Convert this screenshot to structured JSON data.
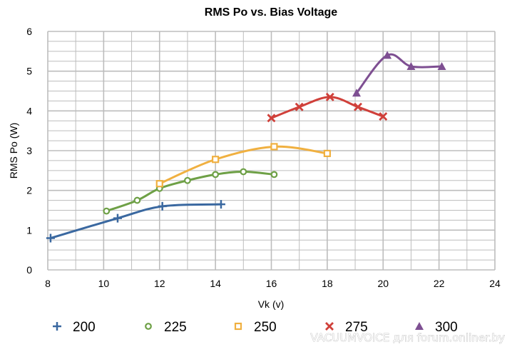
{
  "chart_data": {
    "type": "scatter",
    "title": "RMS Po vs. Bias Voltage",
    "xlabel": "Vk (v)",
    "ylabel": "RMS Po (W)",
    "xlim": [
      8,
      24
    ],
    "ylim": [
      0,
      6
    ],
    "xticks": [
      "8",
      "10",
      "12",
      "14",
      "16",
      "18",
      "20",
      "22",
      "24"
    ],
    "yticks": [
      "0",
      "1",
      "2",
      "3",
      "4",
      "5",
      "6"
    ],
    "grid": true,
    "legend_position": "bottom",
    "series": [
      {
        "name": "200",
        "color": "#3a68a0",
        "marker": "plus",
        "x": [
          8.1,
          10.5,
          12.1,
          14.2
        ],
        "y": [
          0.8,
          1.3,
          1.6,
          1.65
        ]
      },
      {
        "name": "225",
        "color": "#6ea046",
        "marker": "circle",
        "x": [
          10.1,
          11.2,
          12.0,
          13.0,
          14.0,
          15.0,
          16.1
        ],
        "y": [
          1.48,
          1.75,
          2.05,
          2.25,
          2.4,
          2.47,
          2.4
        ]
      },
      {
        "name": "250",
        "color": "#f0b040",
        "marker": "square",
        "x": [
          12.0,
          14.0,
          16.1,
          18.0
        ],
        "y": [
          2.17,
          2.78,
          3.1,
          2.93
        ]
      },
      {
        "name": "275",
        "color": "#d0403a",
        "marker": "x",
        "x": [
          16.0,
          17.0,
          18.1,
          19.1,
          20.0
        ],
        "y": [
          3.82,
          4.1,
          4.35,
          4.1,
          3.86
        ]
      },
      {
        "name": "300",
        "color": "#7e4f92",
        "marker": "triangle",
        "x": [
          19.05,
          20.15,
          21.0,
          22.1
        ],
        "y": [
          4.45,
          5.4,
          5.12,
          5.12
        ]
      }
    ]
  },
  "watermark": "VACUUMVOICE для forum.onliner.by"
}
